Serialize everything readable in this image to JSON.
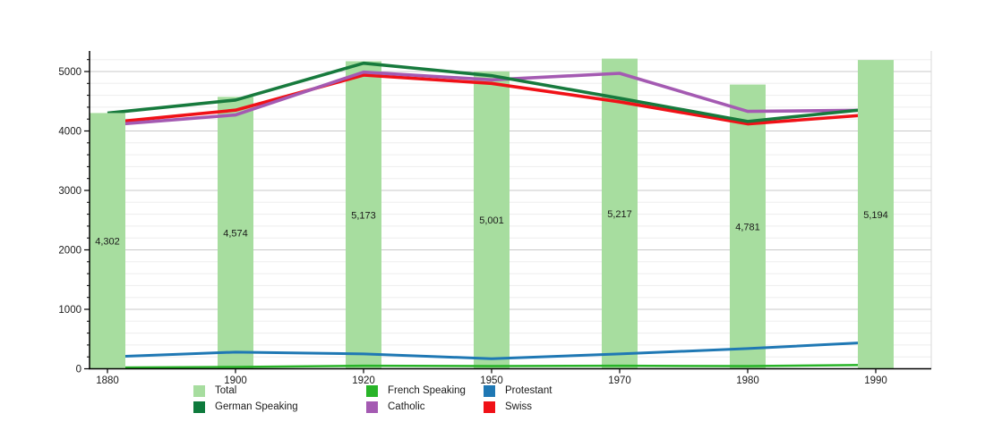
{
  "chart_data": {
    "type": "combo-bar-line",
    "title": "",
    "xlabel": "",
    "ylabel": "",
    "categories": [
      "1880",
      "1900",
      "1920",
      "1950",
      "1970",
      "1980",
      "1990"
    ],
    "bar_series": {
      "name": "Total",
      "color": "#a7dd9f",
      "values": [
        4302,
        4574,
        5173,
        5001,
        5217,
        4781,
        5194
      ],
      "labels": [
        "4,302",
        "4,574",
        "5,173",
        "5,001",
        "5,217",
        "4,781",
        "5,194"
      ]
    },
    "series": [
      {
        "name": "Protestant",
        "color": "#1f78b4",
        "width": 3,
        "values": [
          200,
          280,
          250,
          170,
          250,
          340,
          450
        ]
      },
      {
        "name": "French Speaking",
        "color": "#28b428",
        "width": 2.5,
        "values": [
          20,
          30,
          50,
          45,
          50,
          45,
          65
        ]
      },
      {
        "name": "Swiss",
        "color": "#f01117",
        "width": 3.6,
        "values": [
          4140,
          4350,
          4940,
          4800,
          4490,
          4120,
          4280
        ]
      },
      {
        "name": "Catholic",
        "color": "#a45ab2",
        "width": 3.6,
        "values": [
          4100,
          4270,
          4990,
          4860,
          4970,
          4330,
          4350
        ]
      },
      {
        "name": "German Speaking",
        "color": "#177a3d",
        "width": 3.6,
        "values": [
          4300,
          4520,
          5140,
          4930,
          4550,
          4160,
          4380
        ]
      }
    ],
    "ylim": [
      0,
      5350
    ],
    "yticks": [
      0,
      1000,
      2000,
      3000,
      4000,
      5000
    ],
    "ytick_labels": [
      "0",
      "1000",
      "2000",
      "3000",
      "4000",
      "5000"
    ],
    "minor_grid_step": 200,
    "grid": true,
    "legend_position": "bottom"
  },
  "legend": {
    "items": [
      {
        "label": "Total",
        "color": "#a7dd9f"
      },
      {
        "label": "French Speaking",
        "color": "#28b428"
      },
      {
        "label": "Protestant",
        "color": "#1f78b4"
      },
      {
        "label": "German Speaking",
        "color": "#0e7a3c"
      },
      {
        "label": "Catholic",
        "color": "#a45ab2"
      },
      {
        "label": "Swiss",
        "color": "#f01117"
      }
    ]
  },
  "colors": {
    "axis": "#000000",
    "major_grid": "#c9c9c9",
    "minor_grid": "#ededed",
    "plot_right_border": "#d8d8d8",
    "text": "#1a1a1a"
  }
}
